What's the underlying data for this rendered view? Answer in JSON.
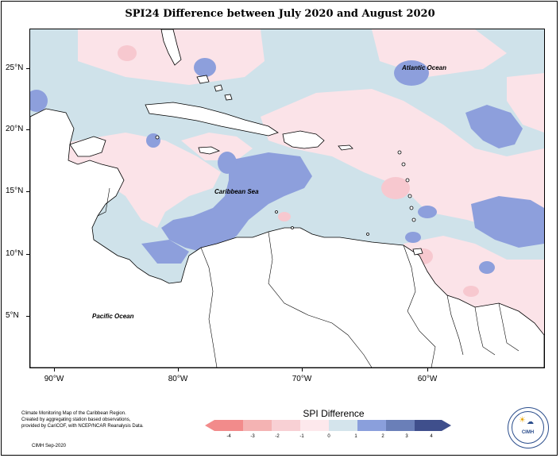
{
  "title": "SPI24 Difference between July 2020 and August 2020",
  "y_axis_labels": [
    "25°N",
    "20°N",
    "15°N",
    "10°N",
    "5°N"
  ],
  "x_axis_labels": [
    "90°W",
    "80°W",
    "70°W",
    "60°W"
  ],
  "map_labels": {
    "atlantic": "Atlantic Ocean",
    "caribbean": "Caribbean Sea",
    "pacific": "Pacific Ocean"
  },
  "credit_lines": [
    "Climate Monitoring Map of the Caribbean Region.",
    "Created by aggregating station based observations,",
    "provided by CariCOF, with NCEP/NCAR Reanalysis Data."
  ],
  "credit_footer": "CIMH Sep-2020",
  "legend": {
    "title": "SPI Difference",
    "ticks": [
      "-4",
      "-3",
      "-2",
      "-1",
      "0",
      "1",
      "2",
      "3",
      "4"
    ],
    "colors": [
      "#f28b8b",
      "#f4b3b3",
      "#f8d0d4",
      "#fde8ec",
      "#d4e4ec",
      "#b4c6e8",
      "#8a9fdc",
      "#6a7fb8",
      "#3f4f8c"
    ]
  },
  "logo": {
    "text": "CIMH"
  },
  "colors": {
    "pink_light": "#fbe3e8",
    "pink_mid": "#f7c8cf",
    "blue_light": "#cfe2ea",
    "blue_mid": "#8d9fdc"
  }
}
